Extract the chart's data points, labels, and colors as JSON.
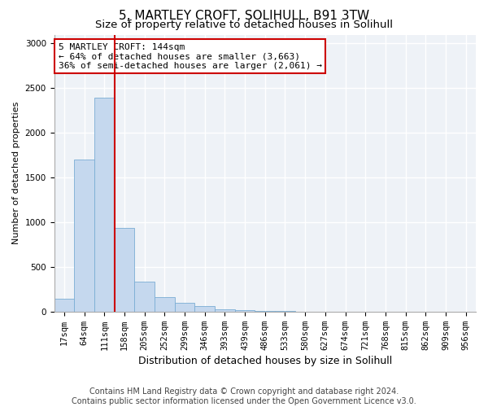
{
  "title1": "5, MARTLEY CROFT, SOLIHULL, B91 3TW",
  "title2": "Size of property relative to detached houses in Solihull",
  "xlabel": "Distribution of detached houses by size in Solihull",
  "ylabel": "Number of detached properties",
  "bar_labels": [
    "17sqm",
    "64sqm",
    "111sqm",
    "158sqm",
    "205sqm",
    "252sqm",
    "299sqm",
    "346sqm",
    "393sqm",
    "439sqm",
    "486sqm",
    "533sqm",
    "580sqm",
    "627sqm",
    "674sqm",
    "721sqm",
    "768sqm",
    "815sqm",
    "862sqm",
    "909sqm",
    "956sqm"
  ],
  "bar_heights": [
    140,
    1700,
    2390,
    940,
    340,
    160,
    100,
    65,
    30,
    15,
    8,
    5,
    3,
    2,
    1,
    1,
    0,
    0,
    0,
    0,
    0
  ],
  "bar_color": "#c5d8ee",
  "bar_edgecolor": "#7aadd4",
  "vline_x": 2.5,
  "vline_color": "#cc0000",
  "ylim": [
    0,
    3100
  ],
  "yticks": [
    0,
    500,
    1000,
    1500,
    2000,
    2500,
    3000
  ],
  "annotation_text": "5 MARTLEY CROFT: 144sqm\n← 64% of detached houses are smaller (3,663)\n36% of semi-detached houses are larger (2,061) →",
  "annotation_box_color": "#cc0000",
  "footer1": "Contains HM Land Registry data © Crown copyright and database right 2024.",
  "footer2": "Contains public sector information licensed under the Open Government Licence v3.0.",
  "fig_background": "#ffffff",
  "plot_background": "#eef2f7",
  "grid_color": "#ffffff",
  "title1_fontsize": 11,
  "title2_fontsize": 9.5,
  "xlabel_fontsize": 9,
  "ylabel_fontsize": 8,
  "tick_fontsize": 7.5,
  "annot_fontsize": 8,
  "footer_fontsize": 7
}
